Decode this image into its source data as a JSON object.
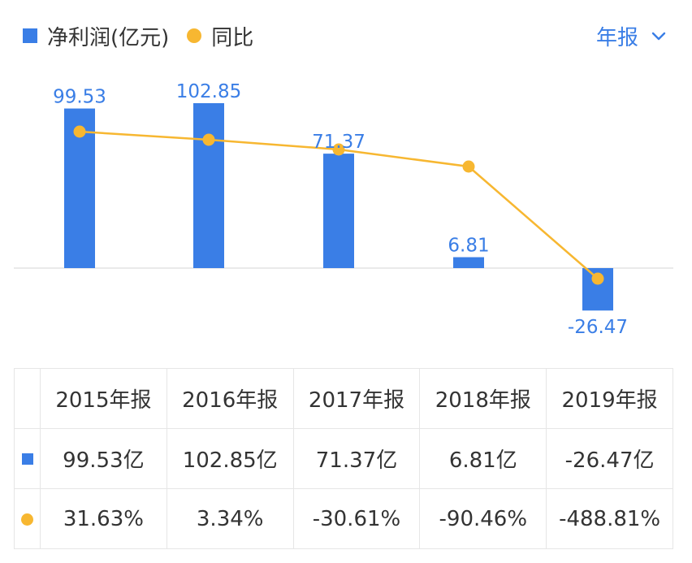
{
  "legend": {
    "bar_label": "净利润(亿元)",
    "line_label": "同比"
  },
  "period_selector": {
    "label": "年报",
    "icon": "chevron-down-icon"
  },
  "colors": {
    "bar": "#3a7ee6",
    "line": "#f7b731",
    "positive": "#d64a4a",
    "negative": "#22a35a",
    "bar_label": "#3a7ee6"
  },
  "chart_data": {
    "type": "bar",
    "categories": [
      "2015年报",
      "2016年报",
      "2017年报",
      "2018年报",
      "2019年报"
    ],
    "series": [
      {
        "name": "净利润(亿元)",
        "type": "bar",
        "values": [
          99.53,
          102.85,
          71.37,
          6.81,
          -26.47
        ],
        "labels": [
          "99.53",
          "102.85",
          "71.37",
          "6.81",
          "-26.47"
        ]
      },
      {
        "name": "同比",
        "type": "line",
        "values": [
          31.63,
          3.34,
          -30.61,
          -90.46,
          -488.81
        ]
      }
    ],
    "title": "",
    "xlabel": "",
    "ylabel": "",
    "grid": false,
    "legend_position": "top-left"
  },
  "table": {
    "headers": [
      "2015年报",
      "2016年报",
      "2017年报",
      "2018年报",
      "2019年报"
    ],
    "profit_row": [
      "99.53亿",
      "102.85亿",
      "71.37亿",
      "6.81亿",
      "-26.47亿"
    ],
    "yoy_row": [
      "31.63%",
      "3.34%",
      "-30.61%",
      "-90.46%",
      "-488.81%"
    ]
  }
}
